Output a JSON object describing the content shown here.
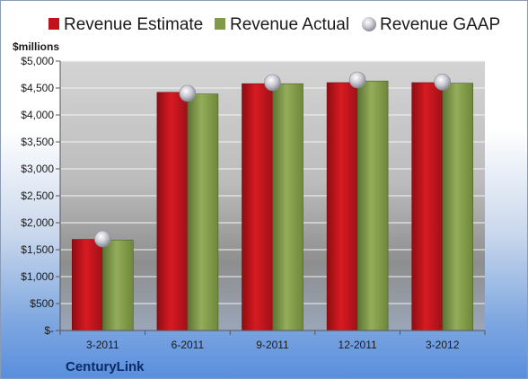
{
  "chart_data": {
    "type": "bar",
    "title": "",
    "unit_label": "$millions",
    "company": "CenturyLink",
    "categories": [
      "3-2011",
      "6-2011",
      "9-2011",
      "12-2011",
      "3-2012"
    ],
    "y_ticks": [
      "$5,000",
      "$4,500",
      "$4,000",
      "$3,500",
      "$3,000",
      "$2,500",
      "$2,000",
      "$1,500",
      "$1,000",
      "$500",
      "$-"
    ],
    "ylim": [
      0,
      5000
    ],
    "grid": true,
    "legend_position": "top",
    "series": [
      {
        "name": "Revenue Estimate",
        "kind": "bar",
        "color": "#c0141b",
        "values": [
          1690,
          4420,
          4580,
          4600,
          4600
        ]
      },
      {
        "name": "Revenue Actual",
        "kind": "bar",
        "color": "#7f9a48",
        "values": [
          1680,
          4390,
          4580,
          4630,
          4590
        ]
      },
      {
        "name": "Revenue GAAP",
        "kind": "marker",
        "color": "#b8b8c0",
        "values": [
          1700,
          4400,
          4600,
          4650,
          4610
        ]
      }
    ]
  }
}
